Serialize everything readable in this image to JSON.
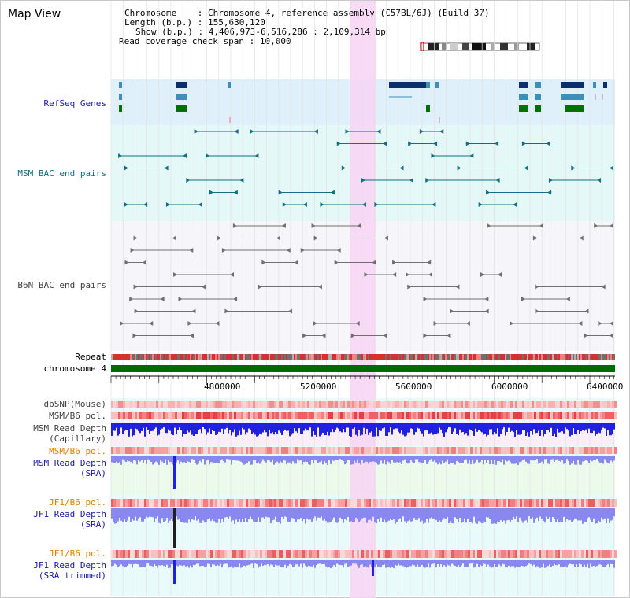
{
  "page": {
    "title": "Map View"
  },
  "info": {
    "chromosome_key": "Chromosome",
    "chromosome_val": "Chromosome 4, reference assembly (C57BL/6J) (Build 37)",
    "length_key": "Length (b.p.)",
    "length_val": "155,630,120",
    "show_key": "Show (b.p.)",
    "show_val": "4,406,973-6,516,286 : 2,109,314 bp",
    "span_key": "Read coverage check span",
    "span_val": "10,000"
  },
  "tracks": {
    "refseq": "RefSeq Genes",
    "msm_bac": "MSM BAC end pairs",
    "b6n_bac": "B6N BAC end pairs",
    "repeat": "Repeat",
    "chromosome": "chromosome 4",
    "dbsnp": "dbSNP(Mouse)",
    "msm_pol": "MSM/B6 pol.",
    "msm_depth_cap_1": "MSM Read Depth",
    "msm_depth_cap_2": "(Capillary)",
    "msm_pol_2": "MSM/B6 pol.",
    "msm_depth_sra_1": "MSM Read Depth",
    "msm_depth_sra_2": "(SRA)",
    "jf1_pol": "JF1/B6 pol.",
    "jf1_depth_1": "JF1 Read Depth",
    "jf1_depth_2": "(SRA)",
    "jf1_pol_2": "JF1/B6 pol.",
    "jf1_trim_1": "JF1 Read Depth",
    "jf1_trim_2": "(SRA trimmed)"
  },
  "axis": {
    "ticks": [
      "4800000",
      "5200000",
      "5600000",
      "6000000",
      "6400000"
    ]
  },
  "colors": {
    "refseq_bg": "#dff0fa",
    "msm_bg": "#e6fafa",
    "b6n_bg": "#f4f4f8",
    "highlight": "#f8d8f4",
    "gene_dark": "#0a2e6e",
    "gene_mid": "#3a90b8",
    "gene_green": "#007000",
    "bac_teal": "#107080",
    "bac_gray": "#707070",
    "chrom_green": "#006c00",
    "depth_blue": "#2020e0",
    "depth_light": "#8888f0"
  },
  "icons": [
    "chromosome-ideogram"
  ]
}
